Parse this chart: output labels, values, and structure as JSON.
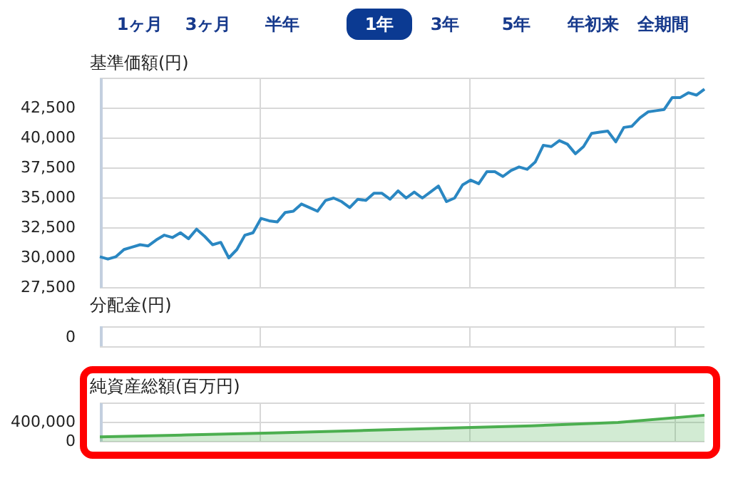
{
  "chart_data": [
    {
      "type": "line",
      "ylabel": "基準価額(円)",
      "annotations": [
        "1ヶ月",
        "3ヶ月",
        "半年",
        "1年",
        "3年",
        "5年",
        "年初来",
        "全期間"
      ],
      "categories": [
        null,
        null,
        null,
        null,
        null,
        null,
        null,
        null,
        null,
        null,
        null,
        null,
        null,
        null,
        null,
        null,
        null,
        null,
        null,
        null,
        null,
        null,
        null,
        null,
        null,
        null,
        null,
        null,
        null,
        null,
        null,
        null,
        null,
        null,
        null,
        null,
        null,
        null,
        null,
        null,
        null,
        null,
        null,
        null,
        null,
        null,
        null,
        null,
        null,
        null,
        null,
        null,
        null,
        null,
        null,
        null,
        null,
        null,
        null,
        null,
        null,
        null,
        null,
        null,
        null,
        null,
        null,
        null,
        null,
        null,
        null,
        null,
        null,
        null,
        null,
        null
      ],
      "series": [
        {
          "color": "#2a87c2",
          "values": [
            30100,
            29900,
            30100,
            30700,
            30900,
            31100,
            31000,
            31500,
            31900,
            31700,
            32100,
            31600,
            32400,
            31800,
            31100,
            31300,
            30000,
            30700,
            31900,
            32100,
            33300,
            33100,
            33000,
            33800,
            33900,
            34500,
            34200,
            33900,
            34800,
            35000,
            34700,
            34200,
            34900,
            34800,
            35400,
            35400,
            34900,
            35600,
            35000,
            35500,
            35000,
            35500,
            36000,
            34700,
            35000,
            36100,
            36500,
            36200,
            37200,
            37200,
            36800,
            37300,
            37600,
            37400,
            38000,
            39400,
            39300,
            39800,
            39500,
            38700,
            39300,
            40400,
            40500,
            40600,
            39700,
            40900,
            41000,
            41700,
            42200,
            42300,
            42400,
            43400,
            43400,
            43800,
            43600,
            44100
          ]
        }
      ],
      "ylim": [
        27500,
        45000
      ],
      "yticks": [
        {
          "value": 27500,
          "label": "27,500"
        },
        {
          "value": 30000,
          "label": "30,000"
        },
        {
          "value": 32500,
          "label": "32,500"
        },
        {
          "value": 35000,
          "label": "35,000"
        },
        {
          "value": 37500,
          "label": "37,500"
        },
        {
          "value": 40000,
          "label": "40,000"
        },
        {
          "value": 42500,
          "label": "42,500"
        },
        {
          "value": 45000,
          "label": null
        }
      ],
      "grid": true,
      "legend": false,
      "marker": "none",
      "tick_labels": "y"
    },
    {
      "type": "other",
      "ylabel": "分配金(円)",
      "annotations": [
        "0"
      ]
    },
    {
      "type": "area",
      "ylabel": "純資産総額(百万円)",
      "categories": [
        null,
        null,
        null,
        null,
        null,
        null,
        null,
        null
      ],
      "series": [
        {
          "color": "#4caf50",
          "values": [
            100000,
            140000,
            180000,
            230000,
            280000,
            330000,
            400000,
            550000
          ]
        }
      ],
      "ylim": [
        0,
        800000
      ],
      "yticks": [
        {
          "value": 0,
          "label": "0"
        },
        {
          "value": 400000,
          "label": "400,000"
        },
        {
          "value": 800000,
          "label": null
        }
      ],
      "grid": true,
      "legend": false,
      "marker": "none",
      "tick_labels": "y"
    }
  ]
}
